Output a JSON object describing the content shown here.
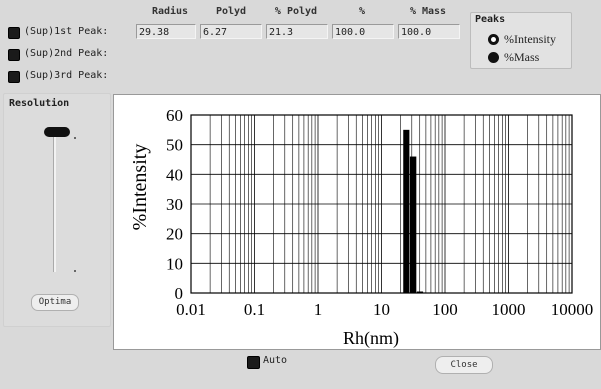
{
  "columns": {
    "radius": "Radius",
    "polyd": "Polyd",
    "pct_polyd": "% Polyd",
    "pct": "%",
    "pct_mass": "% Mass"
  },
  "peaks": [
    {
      "label": "(Sup)1st Peak:",
      "radius": "29.38",
      "polyd": "6.27",
      "pct_polyd": "21.3",
      "pct": "100.0",
      "pct_mass": "100.0"
    },
    {
      "label": "(Sup)2nd Peak:"
    },
    {
      "label": "(Sup)3rd Peak:"
    }
  ],
  "peaks_group": {
    "title": "Peaks",
    "options": [
      "%Intensity",
      "%Mass"
    ],
    "selected": "%Intensity"
  },
  "resolution": {
    "title": "Resolution",
    "button_label": "Optima",
    "level": 0.0
  },
  "auto": {
    "label": "Auto",
    "checked": true
  },
  "close_label": "Close",
  "chart_data": {
    "type": "bar",
    "ylabel": "%Intensity",
    "xlabel": "Rh(nm)",
    "x_scale": "log",
    "xlim": [
      0.01,
      10000
    ],
    "ylim": [
      0,
      60
    ],
    "xticks": [
      "0.01",
      "0.1",
      "1",
      "10",
      "100",
      "1000",
      "10000"
    ],
    "yticks": [
      "0",
      "10",
      "20",
      "30",
      "40",
      "50",
      "60"
    ],
    "grid": true,
    "bars": [
      {
        "x_from": 22,
        "x_to": 28,
        "value": 55
      },
      {
        "x_from": 28,
        "x_to": 36,
        "value": 46
      },
      {
        "x_from": 36,
        "x_to": 46,
        "value": 0.5
      }
    ],
    "bar_color": "#000000"
  }
}
